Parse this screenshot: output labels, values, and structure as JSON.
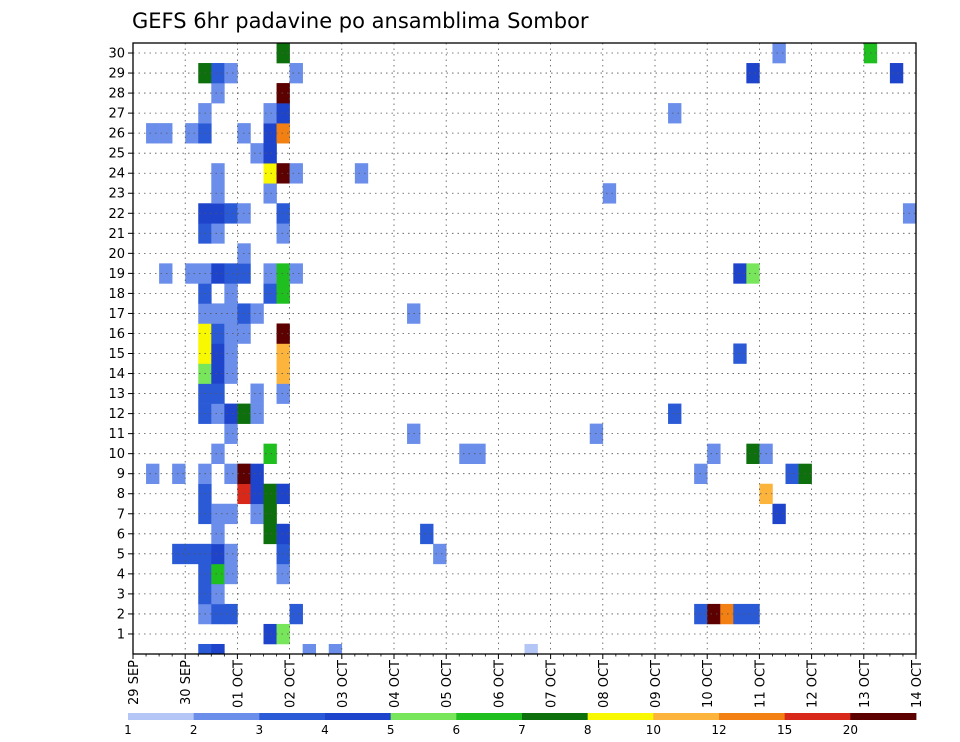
{
  "chart_data": {
    "type": "heatmap",
    "title": "GEFS 6hr padavine po ansamblima Sombor",
    "xlabel": "",
    "ylabel": "",
    "x_start_day": "29 SEP",
    "x_ticks": [
      "29 SEP",
      "30 SEP",
      "01 OCT",
      "02 OCT",
      "03 OCT",
      "04 OCT",
      "05 OCT",
      "06 OCT",
      "07 OCT",
      "08 OCT",
      "09 OCT",
      "10 OCT",
      "11 OCT",
      "12 OCT",
      "13 OCT",
      "14 OCT"
    ],
    "y_ticks": [
      "1",
      "2",
      "3",
      "4",
      "5",
      "6",
      "7",
      "8",
      "9",
      "10",
      "11",
      "12",
      "13",
      "14",
      "15",
      "16",
      "17",
      "18",
      "19",
      "20",
      "21",
      "22",
      "23",
      "24",
      "25",
      "26",
      "27",
      "28",
      "29",
      "30"
    ],
    "ylim": [
      0,
      30
    ],
    "grid": true,
    "colorbar": {
      "labels": [
        "1",
        "2",
        "3",
        "4",
        "5",
        "6",
        "7",
        "8",
        "10",
        "12",
        "15",
        "20"
      ],
      "colors": [
        "#b4c6f5",
        "#6b8eea",
        "#2a5ad6",
        "#1f44cc",
        "#78e65a",
        "#1fbf1f",
        "#0d700d",
        "#f8f800",
        "#fcb43c",
        "#f28012",
        "#d8281a",
        "#5c0000"
      ]
    },
    "series": [
      {
        "member": 0,
        "cells": [
          [
            1.25,
            2
          ],
          [
            1.5,
            3
          ],
          [
            3.25,
            1
          ],
          [
            3.75,
            1
          ],
          [
            7.5,
            0
          ]
        ]
      },
      {
        "member": 1,
        "cells": [
          [
            2.5,
            3
          ],
          [
            2.75,
            4
          ]
        ]
      },
      {
        "member": 2,
        "cells": [
          [
            1.25,
            1
          ],
          [
            1.5,
            2
          ],
          [
            1.75,
            2
          ],
          [
            3.0,
            2
          ],
          [
            10.75,
            2
          ],
          [
            11.0,
            11
          ],
          [
            11.25,
            9
          ],
          [
            11.5,
            2
          ],
          [
            11.75,
            2
          ]
        ]
      },
      {
        "member": 3,
        "cells": [
          [
            1.25,
            2
          ],
          [
            1.5,
            1
          ]
        ]
      },
      {
        "member": 4,
        "cells": [
          [
            1.25,
            2
          ],
          [
            1.5,
            5
          ],
          [
            1.75,
            1
          ],
          [
            2.75,
            1
          ]
        ]
      },
      {
        "member": 5,
        "cells": [
          [
            0.75,
            2
          ],
          [
            1.0,
            2
          ],
          [
            1.25,
            2
          ],
          [
            1.5,
            3
          ],
          [
            1.75,
            1
          ],
          [
            2.75,
            2
          ],
          [
            5.75,
            1
          ]
        ]
      },
      {
        "member": 6,
        "cells": [
          [
            1.5,
            1
          ],
          [
            2.5,
            6
          ],
          [
            2.75,
            3
          ],
          [
            5.5,
            2
          ]
        ]
      },
      {
        "member": 7,
        "cells": [
          [
            1.25,
            2
          ],
          [
            1.5,
            1
          ],
          [
            1.75,
            1
          ],
          [
            2.25,
            1
          ],
          [
            2.5,
            6
          ],
          [
            12.25,
            3
          ]
        ]
      },
      {
        "member": 8,
        "cells": [
          [
            1.25,
            2
          ],
          [
            2.0,
            10
          ],
          [
            2.25,
            3
          ],
          [
            2.5,
            6
          ],
          [
            2.75,
            3
          ],
          [
            12.0,
            8
          ]
        ]
      },
      {
        "member": 9,
        "cells": [
          [
            0.25,
            1
          ],
          [
            0.75,
            1
          ],
          [
            1.25,
            1
          ],
          [
            1.75,
            1
          ],
          [
            2.0,
            1
          ],
          [
            2.0,
            11
          ],
          [
            2.25,
            3
          ],
          [
            10.75,
            1
          ],
          [
            12.5,
            2
          ],
          [
            12.75,
            6
          ]
        ]
      },
      {
        "member": 10,
        "cells": [
          [
            1.5,
            1
          ],
          [
            2.5,
            5
          ],
          [
            6.25,
            1
          ],
          [
            6.5,
            1
          ],
          [
            11.0,
            1
          ],
          [
            11.75,
            6
          ],
          [
            12.0,
            1
          ]
        ]
      },
      {
        "member": 11,
        "cells": [
          [
            1.75,
            1
          ],
          [
            5.25,
            1
          ],
          [
            8.75,
            1
          ]
        ]
      },
      {
        "member": 12,
        "cells": [
          [
            1.25,
            2
          ],
          [
            1.5,
            1
          ],
          [
            1.75,
            3
          ],
          [
            2.0,
            6
          ],
          [
            2.25,
            1
          ],
          [
            10.25,
            2
          ]
        ]
      },
      {
        "member": 13,
        "cells": [
          [
            1.25,
            2
          ],
          [
            1.5,
            2
          ],
          [
            2.25,
            1
          ],
          [
            2.75,
            1
          ]
        ]
      },
      {
        "member": 14,
        "cells": [
          [
            1.25,
            4
          ],
          [
            1.5,
            3
          ],
          [
            1.75,
            1
          ],
          [
            2.75,
            8
          ]
        ]
      },
      {
        "member": 15,
        "cells": [
          [
            1.25,
            7
          ],
          [
            1.5,
            3
          ],
          [
            1.75,
            1
          ],
          [
            2.75,
            8
          ],
          [
            11.5,
            2
          ]
        ]
      },
      {
        "member": 16,
        "cells": [
          [
            1.25,
            7
          ],
          [
            1.5,
            2
          ],
          [
            1.75,
            1
          ],
          [
            2.0,
            1
          ],
          [
            2.75,
            11
          ]
        ]
      },
      {
        "member": 17,
        "cells": [
          [
            1.25,
            1
          ],
          [
            1.5,
            1
          ],
          [
            1.75,
            1
          ],
          [
            2.0,
            2
          ],
          [
            2.25,
            1
          ],
          [
            5.25,
            1
          ]
        ]
      },
      {
        "member": 18,
        "cells": [
          [
            1.25,
            2
          ],
          [
            1.75,
            1
          ],
          [
            2.5,
            2
          ],
          [
            2.75,
            5
          ]
        ]
      },
      {
        "member": 19,
        "cells": [
          [
            0.5,
            1
          ],
          [
            1.0,
            1
          ],
          [
            1.25,
            1
          ],
          [
            1.5,
            3
          ],
          [
            1.75,
            2
          ],
          [
            2.0,
            2
          ],
          [
            2.5,
            1
          ],
          [
            2.75,
            5
          ],
          [
            3.0,
            1
          ],
          [
            11.5,
            3
          ],
          [
            11.75,
            4
          ]
        ]
      },
      {
        "member": 20,
        "cells": [
          [
            2.0,
            1
          ]
        ]
      },
      {
        "member": 21,
        "cells": [
          [
            1.25,
            2
          ],
          [
            1.5,
            1
          ],
          [
            2.75,
            1
          ]
        ]
      },
      {
        "member": 22,
        "cells": [
          [
            1.25,
            3
          ],
          [
            1.5,
            3
          ],
          [
            1.75,
            2
          ],
          [
            2.0,
            1
          ],
          [
            2.75,
            2
          ],
          [
            14.75,
            1
          ],
          [
            15.0,
            1
          ]
        ]
      },
      {
        "member": 23,
        "cells": [
          [
            1.5,
            1
          ],
          [
            2.5,
            1
          ],
          [
            9.0,
            1
          ]
        ]
      },
      {
        "member": 24,
        "cells": [
          [
            1.5,
            1
          ],
          [
            2.5,
            7
          ],
          [
            2.75,
            11
          ],
          [
            3.0,
            1
          ],
          [
            4.25,
            1
          ],
          [
            15.0,
            3
          ]
        ]
      },
      {
        "member": 25,
        "cells": [
          [
            2.25,
            1
          ],
          [
            2.5,
            3
          ]
        ]
      },
      {
        "member": 26,
        "cells": [
          [
            0.25,
            1
          ],
          [
            0.5,
            1
          ],
          [
            1.0,
            1
          ],
          [
            1.25,
            2
          ],
          [
            2.0,
            1
          ],
          [
            2.5,
            3
          ],
          [
            2.75,
            9
          ]
        ]
      },
      {
        "member": 27,
        "cells": [
          [
            1.25,
            1
          ],
          [
            2.5,
            1
          ],
          [
            2.75,
            3
          ],
          [
            10.25,
            1
          ]
        ]
      },
      {
        "member": 28,
        "cells": [
          [
            1.5,
            1
          ],
          [
            2.75,
            11
          ]
        ]
      },
      {
        "member": 29,
        "cells": [
          [
            1.25,
            6
          ],
          [
            1.5,
            2
          ],
          [
            1.75,
            1
          ],
          [
            3.0,
            1
          ],
          [
            11.75,
            3
          ],
          [
            14.5,
            3
          ],
          [
            15.0,
            1
          ]
        ]
      },
      {
        "member": 30,
        "cells": [
          [
            2.75,
            6
          ],
          [
            12.25,
            1
          ],
          [
            14.0,
            5
          ]
        ]
      }
    ]
  }
}
